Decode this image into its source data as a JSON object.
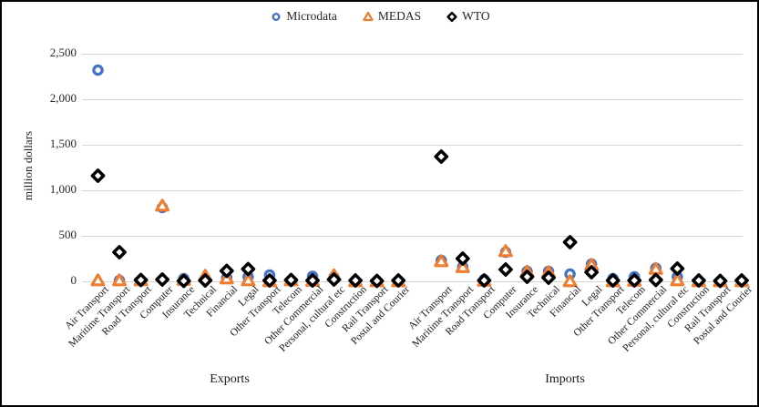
{
  "y_axis": {
    "title": "million dollars",
    "ticks": [
      {
        "label": "0",
        "value": 0
      },
      {
        "label": "500",
        "value": 500
      },
      {
        "label": "1,000",
        "value": 1000
      },
      {
        "label": "1,500",
        "value": 1500
      },
      {
        "label": "2,000",
        "value": 2000
      },
      {
        "label": "2,500",
        "value": 2500
      }
    ]
  },
  "legend": {
    "items": [
      {
        "label": "Microdata",
        "marker": "circle",
        "color": "#4472C4"
      },
      {
        "label": "MEDAS",
        "marker": "triangle",
        "color": "#ED7D31"
      },
      {
        "label": "WTO",
        "marker": "diamond",
        "color": "#000000"
      }
    ]
  },
  "chart_data": {
    "type": "scatter",
    "title": "",
    "xlabel": "",
    "ylabel": "million dollars",
    "ylim": [
      0,
      2500
    ],
    "grid": true,
    "legend_position": "top",
    "marker_colors": {
      "Microdata": "#4472C4",
      "MEDAS": "#ED7D31",
      "WTO": "#000000"
    },
    "groups": [
      {
        "label": "Exports",
        "categories": [
          "Air Transport",
          "Maritime Transport",
          "Road Transport",
          "Computer",
          "Insurance",
          "Technical",
          "Financial",
          "Legal",
          "Other Transport",
          "Telecom",
          "Other Commercial",
          "Personal, cultural etc",
          "Construction",
          "Rail Transport",
          "Postal and Courier"
        ],
        "series": [
          {
            "name": "Microdata",
            "values": [
              2320,
              10,
              10,
              810,
              30,
              30,
              40,
              50,
              70,
              10,
              55,
              45,
              5,
              0,
              5
            ]
          },
          {
            "name": "MEDAS",
            "values": [
              10,
              10,
              10,
              830,
              15,
              60,
              30,
              10,
              0,
              10,
              5,
              65,
              0,
              0,
              0
            ]
          },
          {
            "name": "WTO",
            "values": [
              1160,
              320,
              15,
              20,
              5,
              10,
              115,
              135,
              10,
              15,
              10,
              20,
              10,
              5,
              10
            ]
          }
        ]
      },
      {
        "label": "Imports",
        "categories": [
          "Air Transport",
          "Maritime Transport",
          "Road Transport",
          "Computer",
          "Insurance",
          "Technical",
          "Financial",
          "Legal",
          "Other Transport",
          "Telecom",
          "Other Commercial",
          "Personal, cultural etc",
          "Construction",
          "Rail Transport",
          "Postal and Courier"
        ],
        "series": [
          {
            "name": "Microdata",
            "values": [
              230,
              160,
              20,
              320,
              110,
              110,
              80,
              190,
              30,
              50,
              145,
              50,
              5,
              0,
              5
            ]
          },
          {
            "name": "MEDAS",
            "values": [
              220,
              155,
              5,
              330,
              105,
              100,
              0,
              180,
              0,
              5,
              135,
              10,
              0,
              0,
              0
            ]
          },
          {
            "name": "WTO",
            "values": [
              1370,
              250,
              10,
              130,
              50,
              40,
              430,
              100,
              10,
              10,
              15,
              140,
              10,
              5,
              10
            ]
          }
        ]
      }
    ]
  }
}
